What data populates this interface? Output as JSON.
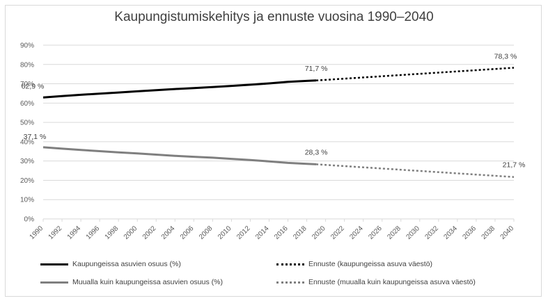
{
  "chart_data": {
    "type": "line",
    "title": "Kaupungistumiskehitys ja ennuste vuosina 1990–2040",
    "xlabel": "",
    "ylabel": "",
    "x": [
      1990,
      1992,
      1994,
      1996,
      1998,
      2000,
      2002,
      2004,
      2006,
      2008,
      2010,
      2012,
      2014,
      2016,
      2018,
      2020,
      2022,
      2024,
      2026,
      2028,
      2030,
      2032,
      2034,
      2036,
      2038,
      2040
    ],
    "y_ticks": [
      "0%",
      "10%",
      "20%",
      "30%",
      "40%",
      "50%",
      "60%",
      "70%",
      "80%",
      "90%"
    ],
    "ylim": [
      0,
      90
    ],
    "grid": true,
    "legend_position": "bottom",
    "series": [
      {
        "name": "Kaupungeissa asuvien osuus (%)",
        "color": "#000000",
        "style": "solid",
        "x": [
          1990,
          1992,
          1994,
          1996,
          1998,
          2000,
          2002,
          2004,
          2006,
          2008,
          2010,
          2012,
          2014,
          2016,
          2018,
          2019
        ],
        "values": [
          62.9,
          63.6,
          64.3,
          64.9,
          65.5,
          66.1,
          66.7,
          67.3,
          67.8,
          68.3,
          68.9,
          69.5,
          70.2,
          71.0,
          71.5,
          71.7
        ]
      },
      {
        "name": "Ennuste (kaupungeissa asuva väestö)",
        "color": "#000000",
        "style": "dotted",
        "x": [
          2019,
          2040
        ],
        "values": [
          71.7,
          78.3
        ]
      },
      {
        "name": "Muualla kuin kaupungeissa asuvien osuus (%)",
        "color": "#7f7f7f",
        "style": "solid",
        "x": [
          1990,
          1992,
          1994,
          1996,
          1998,
          2000,
          2002,
          2004,
          2006,
          2008,
          2010,
          2012,
          2014,
          2016,
          2018,
          2019
        ],
        "values": [
          37.1,
          36.4,
          35.7,
          35.1,
          34.5,
          33.9,
          33.3,
          32.7,
          32.2,
          31.7,
          31.1,
          30.5,
          29.8,
          29.0,
          28.5,
          28.3
        ]
      },
      {
        "name": "Ennuste (muualla kuin kaupungeissa asuva väestö)",
        "color": "#7f7f7f",
        "style": "dotted",
        "x": [
          2019,
          2040
        ],
        "values": [
          28.3,
          21.7
        ]
      }
    ],
    "annotations": [
      {
        "text": "62,9 %",
        "x": 1990,
        "y": 62.9
      },
      {
        "text": "71,7 %",
        "x": 2019,
        "y": 71.7
      },
      {
        "text": "78,3 %",
        "x": 2040,
        "y": 78.3
      },
      {
        "text": "37,1 %",
        "x": 1990,
        "y": 37.1
      },
      {
        "text": "28,3 %",
        "x": 2019,
        "y": 28.3
      },
      {
        "text": "21,7 %",
        "x": 2040,
        "y": 21.7
      }
    ]
  }
}
